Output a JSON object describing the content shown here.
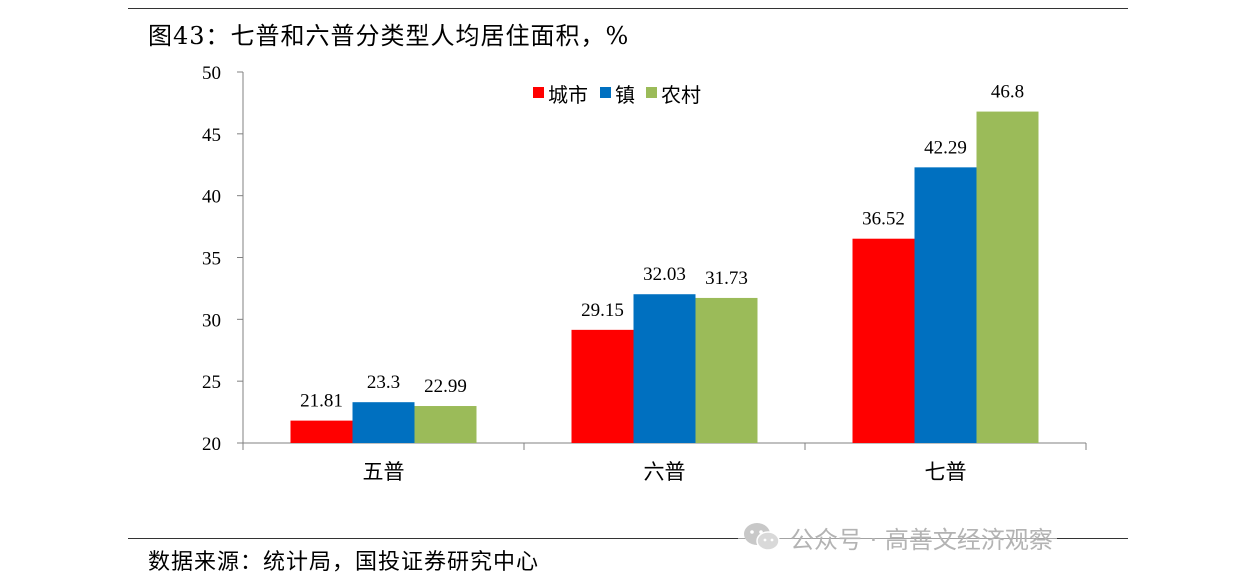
{
  "figure": {
    "title": "图43：七普和六普分类型人均居住面积，%",
    "source": "数据来源：统计局，国投证券研究中心",
    "watermark": "公众号 · 高善文经济观察"
  },
  "colors": {
    "城市": "#ff0000",
    "镇": "#0070c0",
    "农村": "#9bbb59",
    "axis": "#808080"
  },
  "chart_data": {
    "type": "bar",
    "title": "图43：七普和六普分类型人均居住面积，%",
    "xlabel": "",
    "ylabel": "",
    "categories": [
      "五普",
      "六普",
      "七普"
    ],
    "series": [
      {
        "name": "城市",
        "values": [
          21.81,
          29.15,
          36.52
        ]
      },
      {
        "name": "镇",
        "values": [
          23.3,
          32.03,
          42.29
        ]
      },
      {
        "name": "农村",
        "values": [
          22.99,
          31.73,
          46.8
        ]
      }
    ],
    "value_labels": [
      [
        "21.81",
        "29.15",
        "36.52"
      ],
      [
        "23.3",
        "32.03",
        "42.29"
      ],
      [
        "22.99",
        "31.73",
        "46.8"
      ]
    ],
    "ylim": [
      20,
      50
    ],
    "yticks": [
      20,
      25,
      30,
      35,
      40,
      45,
      50
    ],
    "grid": false,
    "legend": "top-center"
  }
}
